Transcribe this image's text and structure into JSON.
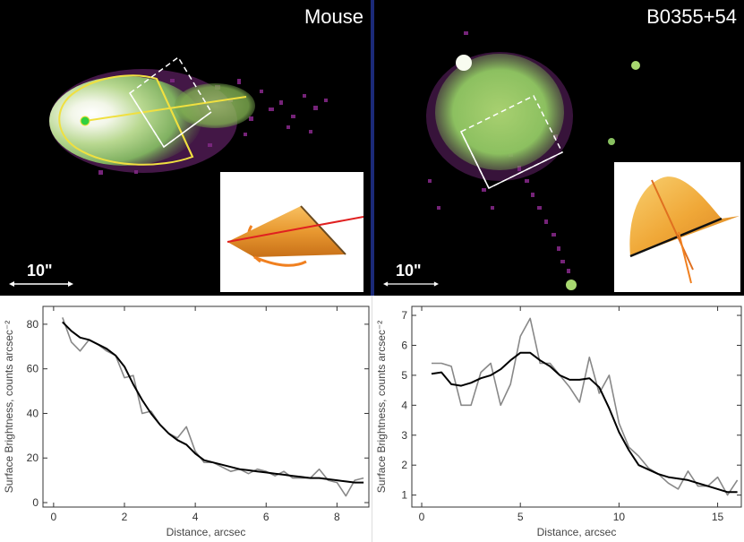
{
  "panels": [
    {
      "title": "Mouse",
      "scalebar_label": "10\""
    },
    {
      "title": "B0355+54",
      "scalebar_label": "10\""
    }
  ],
  "colors": {
    "smooth_curve": "#000000",
    "raw_curve": "#888888",
    "accent_yellow": "#f0e040",
    "cone_orange": "#f0a030"
  },
  "chart_data": [
    {
      "type": "line",
      "title": "",
      "xlabel": "Distance, arcsec",
      "ylabel": "Surface Brightness, counts arcsec⁻²",
      "xlim": [
        -0.3,
        8.9
      ],
      "ylim": [
        -2,
        88
      ],
      "xticks": [
        0,
        2,
        4,
        6,
        8
      ],
      "yticks": [
        0,
        20,
        40,
        60,
        80
      ],
      "series": [
        {
          "name": "raw",
          "color": "#888888",
          "x": [
            0.25,
            0.5,
            0.75,
            1.0,
            1.25,
            1.5,
            1.75,
            2.0,
            2.25,
            2.5,
            2.75,
            3.0,
            3.25,
            3.5,
            3.75,
            4.0,
            4.25,
            4.5,
            4.75,
            5.0,
            5.25,
            5.5,
            5.75,
            6.0,
            6.25,
            6.5,
            6.75,
            7.0,
            7.25,
            7.5,
            7.75,
            8.0,
            8.25,
            8.5,
            8.75
          ],
          "y": [
            83,
            72,
            68,
            73,
            71,
            68,
            66,
            56,
            57,
            40,
            41,
            35,
            31,
            29,
            34,
            23,
            18,
            18,
            16,
            14,
            15,
            13,
            15,
            14,
            12,
            14,
            11,
            11,
            11,
            15,
            10,
            9,
            3,
            10,
            11
          ]
        },
        {
          "name": "smoothed",
          "color": "#000000",
          "x": [
            0.25,
            0.5,
            0.75,
            1.0,
            1.25,
            1.5,
            1.75,
            2.0,
            2.25,
            2.5,
            2.75,
            3.0,
            3.25,
            3.5,
            3.75,
            4.0,
            4.25,
            4.5,
            4.75,
            5.0,
            5.25,
            5.5,
            5.75,
            6.0,
            6.25,
            6.5,
            6.75,
            7.0,
            7.25,
            7.5,
            7.75,
            8.0,
            8.25,
            8.5,
            8.75
          ],
          "y": [
            81,
            77,
            74,
            73,
            71,
            69,
            66,
            61,
            53,
            46,
            40,
            35,
            31,
            28,
            26,
            22,
            19,
            18,
            17,
            16,
            15,
            14.5,
            14,
            13.5,
            13,
            12.5,
            12,
            11.5,
            11,
            11,
            10.5,
            10,
            9.5,
            9,
            9
          ]
        }
      ]
    },
    {
      "type": "line",
      "title": "",
      "xlabel": "Distance, arcsec",
      "ylabel": "Surface Brightness, counts arcsec⁻²",
      "xlim": [
        -0.5,
        16.2
      ],
      "ylim": [
        0.6,
        7.3
      ],
      "xticks": [
        0,
        5,
        10,
        15
      ],
      "yticks": [
        1,
        2,
        3,
        4,
        5,
        6,
        7
      ],
      "series": [
        {
          "name": "raw",
          "color": "#888888",
          "x": [
            0.5,
            1,
            1.5,
            2,
            2.5,
            3,
            3.5,
            4,
            4.5,
            5,
            5.5,
            6,
            6.5,
            7,
            7.5,
            8,
            8.5,
            9,
            9.5,
            10,
            10.5,
            11,
            11.5,
            12,
            12.5,
            13,
            13.5,
            14,
            14.5,
            15,
            15.5,
            16
          ],
          "y": [
            5.4,
            5.4,
            5.3,
            4.0,
            4.0,
            5.1,
            5.4,
            4.0,
            4.7,
            6.3,
            6.9,
            5.4,
            5.4,
            5.0,
            4.6,
            4.1,
            5.6,
            4.4,
            5.0,
            3.4,
            2.6,
            2.3,
            1.9,
            1.7,
            1.4,
            1.2,
            1.8,
            1.3,
            1.3,
            1.6,
            1.0,
            1.5
          ]
        },
        {
          "name": "smoothed",
          "color": "#000000",
          "x": [
            0.5,
            1,
            1.5,
            2,
            2.5,
            3,
            3.5,
            4,
            4.5,
            5,
            5.5,
            6,
            6.5,
            7,
            7.5,
            8,
            8.5,
            9,
            9.5,
            10,
            10.5,
            11,
            11.5,
            12,
            12.5,
            13,
            13.5,
            14,
            14.5,
            15,
            15.5,
            16
          ],
          "y": [
            5.05,
            5.1,
            4.7,
            4.65,
            4.75,
            4.9,
            5.0,
            5.2,
            5.5,
            5.75,
            5.75,
            5.5,
            5.3,
            5.0,
            4.85,
            4.85,
            4.9,
            4.6,
            3.9,
            3.1,
            2.5,
            2.0,
            1.85,
            1.7,
            1.6,
            1.55,
            1.5,
            1.4,
            1.3,
            1.2,
            1.1,
            1.1
          ]
        }
      ]
    }
  ]
}
